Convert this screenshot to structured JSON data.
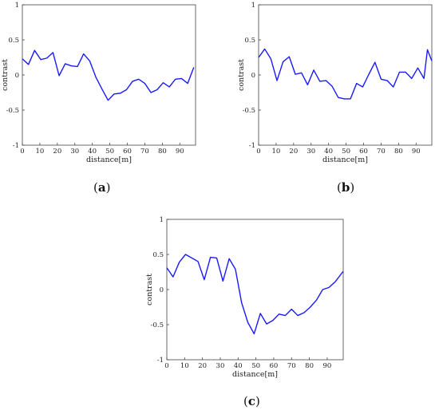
{
  "chart_data": [
    {
      "type": "line",
      "panel_label": "a",
      "xlabel": "distance[m]",
      "ylabel": "contrast",
      "xlim": [
        0,
        99
      ],
      "ylim": [
        -1,
        1
      ],
      "xticks": [
        0,
        10,
        20,
        30,
        40,
        50,
        60,
        70,
        80,
        90
      ],
      "yticks": [
        1,
        0.5,
        0,
        -0.5,
        -1
      ],
      "ytick_labels": [
        "1",
        "0.5",
        "0",
        "-0.5",
        "-1"
      ],
      "grid": false,
      "color": "#1a1aff",
      "x": [
        0,
        3.5,
        7,
        10.5,
        14,
        17.5,
        21,
        24.5,
        28,
        31.5,
        35,
        38.5,
        42,
        45.5,
        49,
        52.5,
        56,
        59.5,
        63,
        66.5,
        70,
        73.5,
        77,
        80.5,
        84,
        87.5,
        91,
        94.5,
        98
      ],
      "y": [
        0.23,
        0.15,
        0.35,
        0.22,
        0.24,
        0.32,
        -0.01,
        0.16,
        0.13,
        0.12,
        0.3,
        0.2,
        -0.03,
        -0.2,
        -0.36,
        -0.27,
        -0.26,
        -0.21,
        -0.09,
        -0.06,
        -0.12,
        -0.25,
        -0.21,
        -0.11,
        -0.17,
        -0.06,
        -0.05,
        -0.12,
        0.11
      ]
    },
    {
      "type": "line",
      "panel_label": "b",
      "xlabel": "distance[m]",
      "ylabel": "contrast",
      "xlim": [
        0,
        99
      ],
      "ylim": [
        -1,
        1
      ],
      "xticks": [
        0,
        10,
        20,
        30,
        40,
        50,
        60,
        70,
        80,
        90
      ],
      "yticks": [
        1,
        0.5,
        0,
        -0.5,
        -1
      ],
      "ytick_labels": [
        "1",
        "0.5",
        "0",
        "-0.5",
        "-1"
      ],
      "grid": false,
      "color": "#1a1aff",
      "x": [
        0,
        3.5,
        7,
        10.5,
        14,
        17.5,
        21,
        24.5,
        28,
        31.5,
        35,
        38.5,
        42,
        45.5,
        49,
        52.5,
        56,
        59.5,
        63,
        66.5,
        70,
        73.5,
        77,
        80.5,
        84,
        87.5,
        91,
        94.5,
        96.5,
        99
      ],
      "y": [
        0.25,
        0.37,
        0.23,
        -0.08,
        0.19,
        0.26,
        0.01,
        0.03,
        -0.14,
        0.07,
        -0.09,
        -0.08,
        -0.16,
        -0.32,
        -0.34,
        -0.34,
        -0.12,
        -0.17,
        0.01,
        0.18,
        -0.06,
        -0.08,
        -0.17,
        0.04,
        0.04,
        -0.05,
        0.1,
        -0.05,
        0.36,
        0.2
      ]
    },
    {
      "type": "line",
      "panel_label": "c",
      "xlabel": "distance[m]",
      "ylabel": "contrast",
      "xlim": [
        0,
        99
      ],
      "ylim": [
        -1,
        1
      ],
      "xticks": [
        0,
        10,
        20,
        30,
        40,
        50,
        60,
        70,
        80,
        90
      ],
      "yticks": [
        1,
        0.5,
        0,
        -0.5,
        -1
      ],
      "ytick_labels": [
        "1",
        "0.5",
        "0",
        "-0.5",
        "-1"
      ],
      "grid": false,
      "color": "#1a1aff",
      "x": [
        0,
        3.5,
        7,
        10.5,
        14,
        17.5,
        21,
        24.5,
        28,
        31.5,
        35,
        38.5,
        42,
        45.5,
        49,
        52.5,
        56,
        59.5,
        63,
        66.5,
        70,
        73.5,
        77,
        80.5,
        84,
        87.5,
        91,
        94.5,
        99
      ],
      "y": [
        0.31,
        0.18,
        0.39,
        0.5,
        0.45,
        0.4,
        0.14,
        0.46,
        0.45,
        0.12,
        0.44,
        0.29,
        -0.19,
        -0.47,
        -0.63,
        -0.34,
        -0.49,
        -0.44,
        -0.35,
        -0.37,
        -0.28,
        -0.37,
        -0.33,
        -0.25,
        -0.15,
        0.0,
        0.03,
        0.11,
        0.26
      ]
    }
  ]
}
